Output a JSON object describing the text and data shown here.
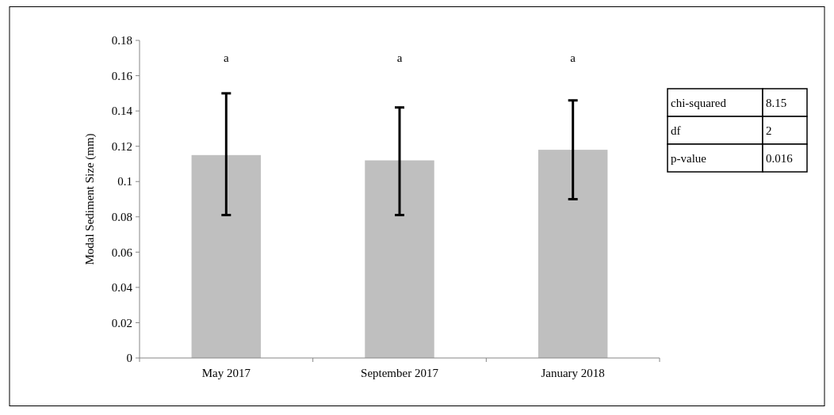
{
  "chart_data": {
    "type": "bar",
    "ylabel": "Modal Sediment Size (mm)",
    "categories": [
      "May 2017",
      "September 2017",
      "January 2018"
    ],
    "values": [
      0.115,
      0.112,
      0.118
    ],
    "errors": [
      [
        0.081,
        0.15
      ],
      [
        0.081,
        0.142
      ],
      [
        0.09,
        0.146
      ]
    ],
    "color": "#bfbfbf",
    "ylim": [
      0,
      0.18
    ],
    "yticks": [
      0,
      0.02,
      0.04,
      0.06,
      0.08,
      0.1,
      0.12,
      0.14,
      0.16,
      0.18
    ],
    "grid": false,
    "annotations": [
      "a",
      "a",
      "a",
      "chi-squared",
      "8.15",
      "df",
      "2",
      "p-value",
      "0.016"
    ]
  }
}
